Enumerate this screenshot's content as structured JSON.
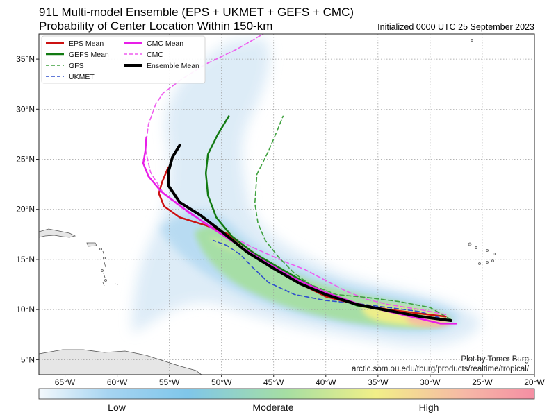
{
  "header": {
    "title_line1": "91L Multi-model Ensemble (EPS + UKMET + GEFS + CMC)",
    "title_line2": "Probability of Center Location Within 150-km",
    "initialized": "Initialized 0000 UTC 25 September 2023"
  },
  "map": {
    "lon_range": [
      -67.5,
      -20
    ],
    "lat_range": [
      3.5,
      37.5
    ],
    "lon_ticks": [
      -65,
      -60,
      -55,
      -50,
      -45,
      -40,
      -35,
      -30,
      -25,
      -20
    ],
    "lon_tick_labels": [
      "65°W",
      "60°W",
      "55°W",
      "50°W",
      "45°W",
      "40°W",
      "35°W",
      "30°W",
      "25°W",
      "20°W"
    ],
    "lat_ticks": [
      5,
      10,
      15,
      20,
      25,
      30,
      35
    ],
    "lat_tick_labels": [
      "5°N",
      "10°N",
      "15°N",
      "20°N",
      "25°N",
      "30°N",
      "35°N"
    ],
    "land_color": "#e6e6e6",
    "grid": "dotted"
  },
  "legend": {
    "entries": [
      {
        "label": "EPS Mean",
        "color": "#cc1111",
        "style": "solid"
      },
      {
        "label": "GEFS Mean",
        "color": "#127a12",
        "style": "solid"
      },
      {
        "label": "GFS",
        "color": "#3fa13f",
        "style": "dashed"
      },
      {
        "label": "UKMET",
        "color": "#2f4fcc",
        "style": "dashed"
      },
      {
        "label": "CMC Mean",
        "color": "#e81ee8",
        "style": "solid"
      },
      {
        "label": "CMC",
        "color": "#ef5cef",
        "style": "dashed"
      },
      {
        "label": "Ensemble Mean",
        "color": "#000000",
        "style": "solid"
      }
    ]
  },
  "tracks": [
    {
      "name": "EPS Mean",
      "color": "#cc1111",
      "dash": false,
      "width": 2.5,
      "points": [
        [
          -28.5,
          9.3
        ],
        [
          -31,
          9.6
        ],
        [
          -34,
          10.0
        ],
        [
          -37,
          10.5
        ],
        [
          -40,
          11.3
        ],
        [
          -42.5,
          12.6
        ],
        [
          -45,
          14.2
        ],
        [
          -47.5,
          16.1
        ],
        [
          -49.5,
          17.6
        ],
        [
          -51.5,
          18.4
        ],
        [
          -54,
          19.2
        ],
        [
          -55.5,
          20.3
        ],
        [
          -56.0,
          21.6
        ],
        [
          -55.7,
          22.7
        ],
        [
          -55.1,
          24.2
        ]
      ]
    },
    {
      "name": "GEFS Mean",
      "color": "#127a12",
      "dash": false,
      "width": 2.5,
      "points": [
        [
          -28.0,
          8.9
        ],
        [
          -31,
          9.4
        ],
        [
          -34,
          9.9
        ],
        [
          -37,
          10.4
        ],
        [
          -39.5,
          11.4
        ],
        [
          -42,
          12.7
        ],
        [
          -44.5,
          14.2
        ],
        [
          -47,
          15.7
        ],
        [
          -49,
          17.3
        ],
        [
          -50.5,
          19.2
        ],
        [
          -51.3,
          21.4
        ],
        [
          -51.5,
          23.6
        ],
        [
          -51.3,
          25.5
        ],
        [
          -50.4,
          27.4
        ],
        [
          -49.3,
          29.3
        ]
      ]
    },
    {
      "name": "GFS",
      "color": "#3fa13f",
      "dash": true,
      "width": 1.6,
      "points": [
        [
          -28.0,
          9.0
        ],
        [
          -30,
          10.2
        ],
        [
          -33,
          10.8
        ],
        [
          -36,
          11.2
        ],
        [
          -39,
          11.5
        ],
        [
          -41.5,
          12.5
        ],
        [
          -43,
          13.6
        ],
        [
          -44.5,
          15.2
        ],
        [
          -45.8,
          16.9
        ],
        [
          -46.5,
          18.6
        ],
        [
          -46.8,
          20.6
        ],
        [
          -46.6,
          23.5
        ],
        [
          -45.5,
          25.8
        ],
        [
          -44.6,
          28.0
        ],
        [
          -44.1,
          29.3
        ]
      ]
    },
    {
      "name": "UKMET",
      "color": "#2f4fcc",
      "dash": true,
      "width": 1.6,
      "points": [
        [
          -28.5,
          9.0
        ],
        [
          -31,
          9.8
        ],
        [
          -34,
          10.2
        ],
        [
          -37,
          10.6
        ],
        [
          -40,
          10.9
        ],
        [
          -43,
          11.5
        ],
        [
          -45.5,
          12.7
        ],
        [
          -47,
          14.2
        ],
        [
          -48.2,
          15.5
        ],
        [
          -49.5,
          16.4
        ],
        [
          -50.8,
          16.9
        ]
      ]
    },
    {
      "name": "CMC Mean",
      "color": "#e81ee8",
      "dash": false,
      "width": 2.5,
      "points": [
        [
          -27.5,
          8.6
        ],
        [
          -29,
          8.6
        ],
        [
          -31,
          9.1
        ],
        [
          -34,
          9.8
        ],
        [
          -37,
          10.6
        ],
        [
          -40,
          11.7
        ],
        [
          -43,
          13.1
        ],
        [
          -46,
          14.9
        ],
        [
          -48.5,
          16.5
        ],
        [
          -51,
          18.2
        ],
        [
          -53.5,
          20.0
        ],
        [
          -55.8,
          21.8
        ],
        [
          -57.0,
          23.3
        ],
        [
          -57.5,
          24.6
        ],
        [
          -57.3,
          25.8
        ],
        [
          -57.2,
          27.2
        ]
      ]
    },
    {
      "name": "CMC",
      "color": "#ef5cef",
      "dash": true,
      "width": 1.6,
      "points": [
        [
          -28.5,
          9.5
        ],
        [
          -31,
          10.0
        ],
        [
          -34,
          10.5
        ],
        [
          -36,
          11.0
        ],
        [
          -38,
          11.8
        ],
        [
          -40,
          12.9
        ],
        [
          -42,
          14.0
        ],
        [
          -44,
          14.8
        ],
        [
          -47,
          16.2
        ],
        [
          -50,
          17.8
        ],
        [
          -53,
          19.5
        ],
        [
          -55.5,
          21.5
        ],
        [
          -56.8,
          23.7
        ],
        [
          -57.3,
          26.0
        ],
        [
          -57.0,
          28.5
        ],
        [
          -56.3,
          30.5
        ],
        [
          -55.6,
          31.6
        ],
        [
          -53.8,
          33.0
        ],
        [
          -51.5,
          34.5
        ],
        [
          -48.5,
          36.0
        ],
        [
          -46,
          37.5
        ]
      ]
    },
    {
      "name": "Ensemble Mean",
      "color": "#000000",
      "dash": false,
      "width": 4,
      "points": [
        [
          -28.0,
          8.9
        ],
        [
          -31,
          9.3
        ],
        [
          -34,
          9.9
        ],
        [
          -37,
          10.5
        ],
        [
          -40,
          11.5
        ],
        [
          -42.5,
          12.6
        ],
        [
          -45,
          14.1
        ],
        [
          -47.5,
          15.7
        ],
        [
          -50,
          17.8
        ],
        [
          -52,
          19.4
        ],
        [
          -54,
          20.7
        ],
        [
          -55.1,
          22.4
        ],
        [
          -55.1,
          23.7
        ],
        [
          -54.7,
          25.2
        ],
        [
          -54.0,
          26.4
        ]
      ]
    }
  ],
  "credits": {
    "line1": "Plot by Tomer Burg",
    "line2": "arctic.som.ou.edu/tburg/products/realtime/tropical/"
  },
  "colorbar": {
    "labels": [
      "Low",
      "Moderate",
      "High"
    ],
    "colors": [
      "#f3f8fc",
      "#a6d4f1",
      "#7fc6ea",
      "#a6dfa2",
      "#f2ef88",
      "#f6b8a6",
      "#f58ea3"
    ]
  }
}
